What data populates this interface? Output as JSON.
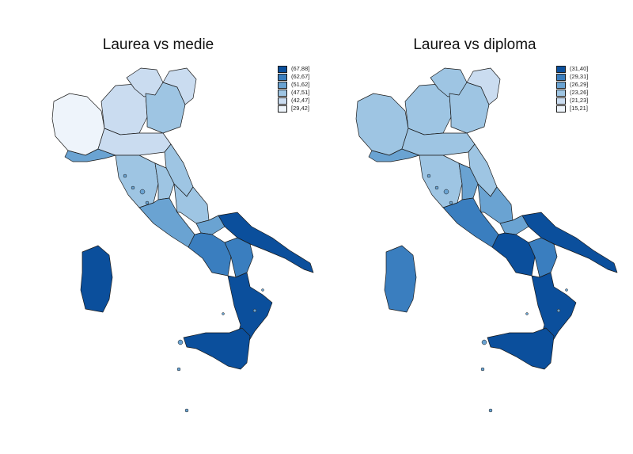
{
  "maps": [
    {
      "title": "Laurea vs medie",
      "legend": [
        {
          "label": "(67,88]",
          "color": "#0b4f9c"
        },
        {
          "label": "(62,67]",
          "color": "#3a7ebf"
        },
        {
          "label": "(51,62]",
          "color": "#6aa3d2"
        },
        {
          "label": "(47,51]",
          "color": "#9ec5e3"
        },
        {
          "label": "(42,47]",
          "color": "#cadcf0"
        },
        {
          "label": "[29,42]",
          "color": "#eef4fb"
        }
      ],
      "regions": {
        "north_west": 5,
        "lombardy": 4,
        "veneto": 3,
        "trentino": 4,
        "friuli": 4,
        "liguria": 2,
        "emilia": 4,
        "tuscany": 3,
        "marche": 3,
        "umbria": 3,
        "lazio": 2,
        "abruzzo": 3,
        "molise": 2,
        "campania": 1,
        "puglia": 0,
        "basilicata": 1,
        "calabria": 0,
        "sicily": 0,
        "sardinia": 0
      }
    },
    {
      "title": "Laurea vs diploma",
      "legend": [
        {
          "label": "(31,40]",
          "color": "#0b4f9c"
        },
        {
          "label": "(29,31]",
          "color": "#3a7ebf"
        },
        {
          "label": "(26,29]",
          "color": "#6aa3d2"
        },
        {
          "label": "(23,26]",
          "color": "#9ec5e3"
        },
        {
          "label": "(21,23]",
          "color": "#cadcf0"
        },
        {
          "label": "[15,21]",
          "color": "#eef4fb"
        }
      ],
      "regions": {
        "north_west": 3,
        "lombardy": 3,
        "veneto": 3,
        "trentino": 3,
        "friuli": 4,
        "liguria": 2,
        "emilia": 3,
        "tuscany": 3,
        "marche": 3,
        "umbria": 2,
        "lazio": 1,
        "abruzzo": 2,
        "molise": 2,
        "campania": 0,
        "puglia": 0,
        "basilicata": 1,
        "calabria": 0,
        "sicily": 0,
        "sardinia": 1
      }
    }
  ]
}
